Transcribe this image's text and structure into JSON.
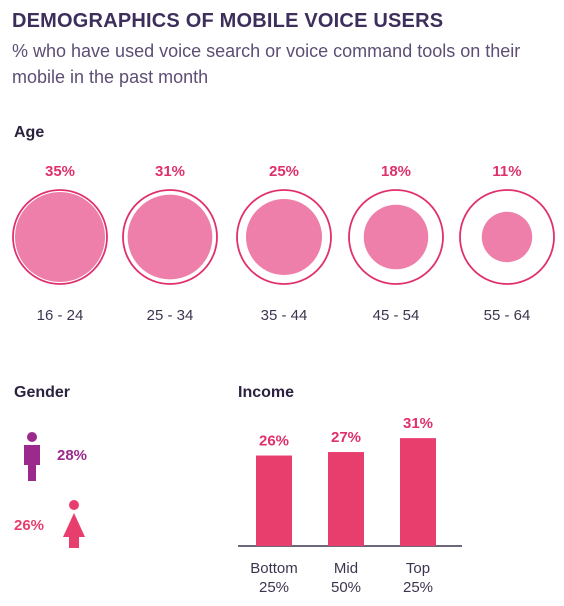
{
  "title": "DEMOGRAPHICS OF MOBILE VOICE USERS",
  "subtitle": "% who have used voice search or voice command tools on their mobile in the past month",
  "colors": {
    "accent": "#e0306b",
    "circle_fill": "#ee7fab",
    "circle_stroke": "#e0306b",
    "bar": "#e83e6e",
    "male": "#9c2a8c",
    "female": "#e83e6e",
    "title": "#3d2f5b"
  },
  "chart_data": [
    {
      "type": "bubble",
      "title": "Age",
      "categories": [
        "16 - 24",
        "25 - 34",
        "35 - 44",
        "45 - 54",
        "55 - 64"
      ],
      "values": [
        35,
        31,
        25,
        18,
        11
      ],
      "labels": [
        "35%",
        "31%",
        "25%",
        "18%",
        "11%"
      ],
      "max": 35
    },
    {
      "type": "pictogram",
      "title": "Gender",
      "series": [
        {
          "icon": "male-icon",
          "value": 28,
          "label": "28%"
        },
        {
          "icon": "female-icon",
          "value": 26,
          "label": "26%"
        }
      ]
    },
    {
      "type": "bar",
      "title": "Income",
      "categories": [
        [
          "Bottom",
          "25%"
        ],
        [
          "Mid",
          "50%"
        ],
        [
          "Top",
          "25%"
        ]
      ],
      "values": [
        26,
        27,
        31
      ],
      "labels": [
        "26%",
        "27%",
        "31%"
      ]
    }
  ]
}
